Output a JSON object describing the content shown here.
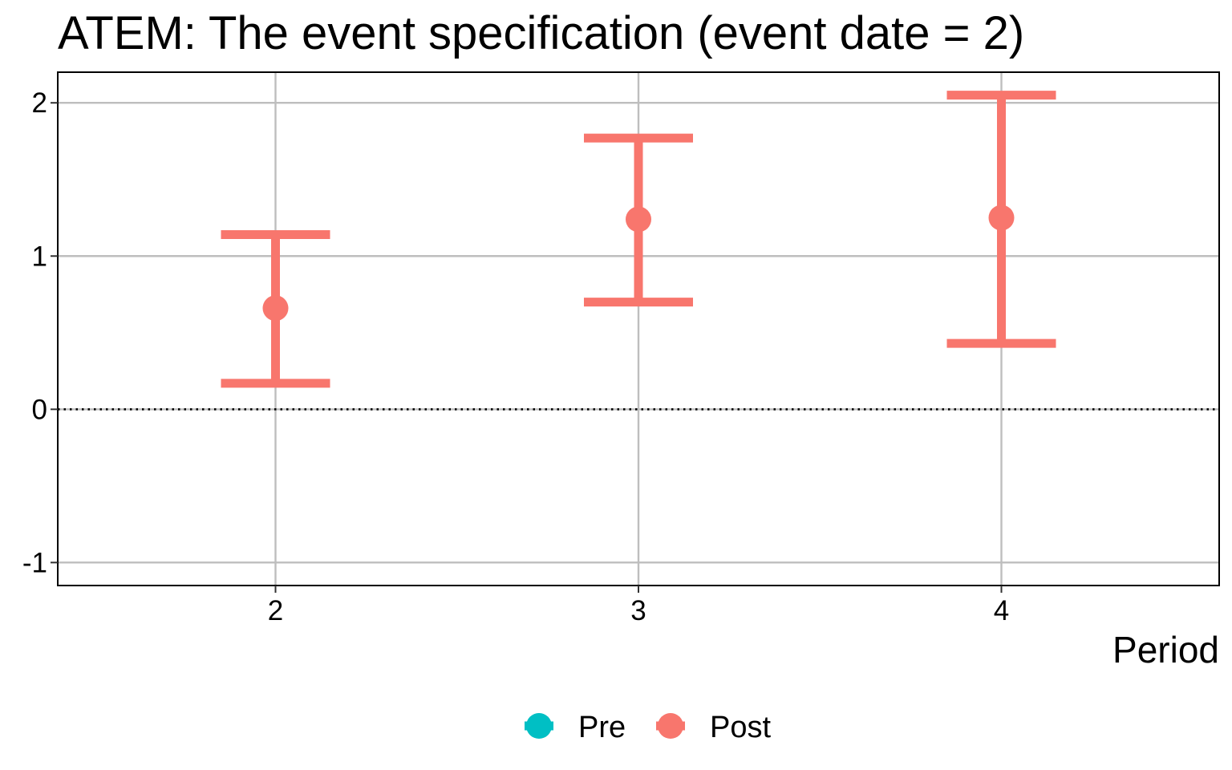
{
  "chart_data": {
    "type": "scatter",
    "title": "ATEM: The event specification (event date = 2)",
    "xlabel": "Period",
    "ylabel": "",
    "x_ticks": [
      "2",
      "3",
      "4"
    ],
    "y_ticks": [
      "-1",
      "0",
      "1",
      "2"
    ],
    "xlim": [
      1.4,
      4.6
    ],
    "ylim": [
      -1.15,
      2.2
    ],
    "grid": true,
    "reference_line_y": 0,
    "legend": {
      "position": "bottom",
      "entries": [
        {
          "label": "Pre",
          "color": "#00BFC4"
        },
        {
          "label": "Post",
          "color": "#F8766D"
        }
      ]
    },
    "series": [
      {
        "name": "Post",
        "color": "#F8766D",
        "points": [
          {
            "x": 2,
            "y": 0.66,
            "ymin": 0.17,
            "ymax": 1.14
          },
          {
            "x": 3,
            "y": 1.24,
            "ymin": 0.7,
            "ymax": 1.77
          },
          {
            "x": 4,
            "y": 1.25,
            "ymin": 0.43,
            "ymax": 2.05
          }
        ]
      },
      {
        "name": "Pre",
        "color": "#00BFC4",
        "points": []
      }
    ]
  }
}
